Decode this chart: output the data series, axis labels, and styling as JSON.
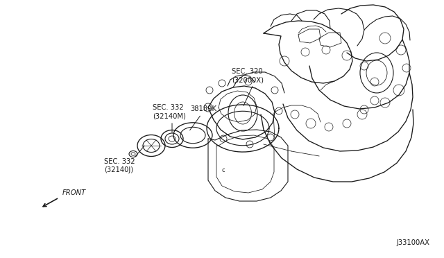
{
  "bg_color": "#ffffff",
  "line_color": "#1a1a1a",
  "lw": 0.8,
  "figsize": [
    6.4,
    3.72
  ],
  "dpi": 100,
  "labels": {
    "sec320": "SEC. 320\n(32000X)",
    "sec332m": "SEC. 332\n(32140M)",
    "sec332j": "SEC. 332\n(32140J)",
    "part38189k": "38189K",
    "ref_code": "J33100AX",
    "front": "FRONT"
  }
}
